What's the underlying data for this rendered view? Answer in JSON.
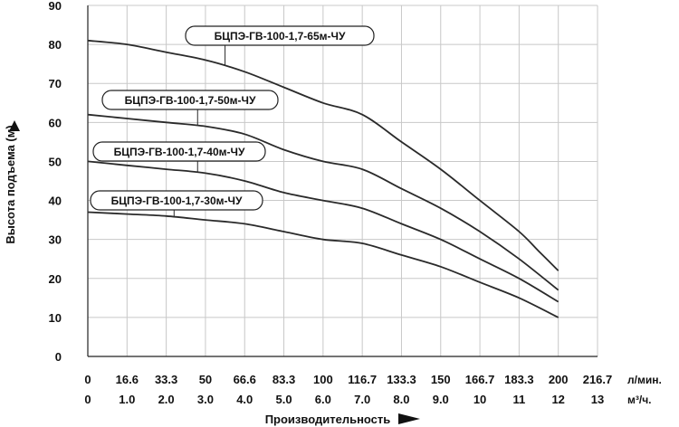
{
  "chart_data": {
    "type": "line",
    "ylabel": "Высота подъема (м)",
    "xlabel": "Производительность",
    "ylim": [
      0,
      90
    ],
    "xlim": [
      0,
      13
    ],
    "grid": true,
    "y_ticks": [
      "0",
      "10",
      "20",
      "30",
      "40",
      "50",
      "60",
      "70",
      "80",
      "90"
    ],
    "x_ticks_m3h": [
      "0",
      "1.0",
      "2.0",
      "3.0",
      "4.0",
      "5.0",
      "6.0",
      "7.0",
      "8.0",
      "9.0",
      "10",
      "11",
      "12",
      "13"
    ],
    "x_ticks_lmin": [
      "0",
      "16.6",
      "33.3",
      "50",
      "66.6",
      "83.3",
      "100",
      "116.7",
      "133.3",
      "150",
      "166.7",
      "183.3",
      "200",
      "216.7"
    ],
    "x_unit_lmin": "л/мин.",
    "x_unit_m3h": "м³/ч.",
    "series": [
      {
        "name": "БЦПЭ-ГВ-100-1,7-65м-ЧУ",
        "x": [
          0,
          1,
          2,
          3,
          4,
          5,
          6,
          7,
          8,
          9,
          10,
          11,
          11.5,
          12
        ],
        "y": [
          81,
          80,
          78,
          76,
          73,
          69,
          65,
          62,
          55,
          48,
          40,
          32,
          27,
          22
        ]
      },
      {
        "name": "БЦПЭ-ГВ-100-1,7-50м-ЧУ",
        "x": [
          0,
          1,
          2,
          3,
          4,
          5,
          6,
          7,
          8,
          9,
          10,
          11,
          12
        ],
        "y": [
          62,
          61,
          60,
          59,
          57,
          53,
          50,
          48,
          43,
          38,
          32,
          25,
          17
        ]
      },
      {
        "name": "БЦПЭ-ГВ-100-1,7-40м-ЧУ",
        "x": [
          0,
          1,
          2,
          3,
          4,
          5,
          6,
          7,
          8,
          9,
          10,
          11,
          12
        ],
        "y": [
          50,
          49,
          48,
          47,
          45,
          42,
          40,
          38,
          34,
          30,
          25,
          20,
          14
        ]
      },
      {
        "name": "БЦПЭ-ГВ-100-1,7-30м-ЧУ",
        "x": [
          0,
          1,
          2,
          3,
          4,
          5,
          6,
          7,
          8,
          9,
          10,
          11,
          12
        ],
        "y": [
          37,
          36.5,
          36,
          35,
          34,
          32,
          30,
          29,
          26,
          23,
          19,
          15,
          10
        ]
      }
    ],
    "series_label_anchor_x": [
      3.5,
      2.8,
      2.8,
      2.2
    ]
  }
}
